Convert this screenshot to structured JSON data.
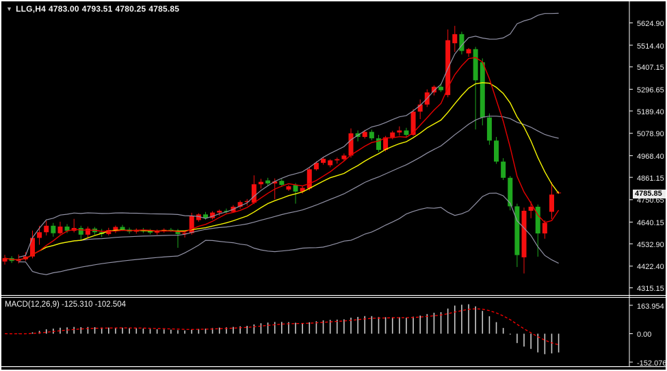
{
  "title_bar": {
    "icon": "▼",
    "symbol_period": "LLG,H4",
    "open": "4783.00",
    "high": "4793.51",
    "low": "4780.25",
    "close": "4785.85"
  },
  "chart_data": {
    "type": "candlestick",
    "symbol": "LLG",
    "timeframe": "H4",
    "title": "LLG,H4 4783.00 4793.51 4780.25 4785.85",
    "ylim": [
      4283,
      5731
    ],
    "grid": false,
    "legend_position": "none",
    "current_bar": {
      "open": "4783.00",
      "high": "4793.51",
      "low": "4780.25",
      "close": "4785.85"
    },
    "current_price": {
      "label": "4785.85",
      "price": 4785.85
    },
    "price_axis_ticks": [
      {
        "label": "5624.90",
        "price": 5624.9
      },
      {
        "label": "5514.40",
        "price": 5514.4
      },
      {
        "label": "5407.15",
        "price": 5407.15
      },
      {
        "label": "5296.65",
        "price": 5296.65
      },
      {
        "label": "5189.40",
        "price": 5189.4
      },
      {
        "label": "5078.90",
        "price": 5078.9
      },
      {
        "label": "4968.40",
        "price": 4968.4
      },
      {
        "label": "4861.15",
        "price": 4861.15
      },
      {
        "label": "4750.65",
        "price": 4750.65
      },
      {
        "label": "4640.15",
        "price": 4640.15
      },
      {
        "label": "4532.90",
        "price": 4532.9
      },
      {
        "label": "4422.40",
        "price": 4422.4
      },
      {
        "label": "4315.15",
        "price": 4315.15
      }
    ],
    "candles": [
      [
        4445,
        4478,
        4430,
        4462
      ],
      [
        4462,
        4472,
        4438,
        4448
      ],
      [
        4448,
        4480,
        4436,
        4456
      ],
      [
        4456,
        4492,
        4448,
        4470
      ],
      [
        4470,
        4598,
        4461,
        4562
      ],
      [
        4562,
        4622,
        4528,
        4590
      ],
      [
        4590,
        4646,
        4574,
        4622
      ],
      [
        4622,
        4636,
        4568,
        4585
      ],
      [
        4585,
        4642,
        4579,
        4618
      ],
      [
        4618,
        4630,
        4586,
        4597
      ],
      [
        4597,
        4656,
        4589,
        4611
      ],
      [
        4611,
        4622,
        4552,
        4578
      ],
      [
        4578,
        4618,
        4560,
        4608
      ],
      [
        4608,
        4616,
        4578,
        4590
      ],
      [
        4590,
        4606,
        4566,
        4581
      ],
      [
        4581,
        4612,
        4574,
        4601
      ],
      [
        4601,
        4623,
        4586,
        4616
      ],
      [
        4616,
        4626,
        4596,
        4603
      ],
      [
        4603,
        4613,
        4583,
        4593
      ],
      [
        4593,
        4609,
        4583,
        4601
      ],
      [
        4601,
        4611,
        4586,
        4595
      ],
      [
        4595,
        4606,
        4579,
        4588
      ],
      [
        4588,
        4603,
        4578,
        4596
      ],
      [
        4596,
        4609,
        4588,
        4602
      ],
      [
        4602,
        4611,
        4591,
        4597
      ],
      [
        4597,
        4606,
        4513,
        4581
      ],
      [
        4581,
        4597,
        4564,
        4586
      ],
      [
        4586,
        4686,
        4578,
        4671
      ],
      [
        4650,
        4684,
        4642,
        4678
      ],
      [
        4678,
        4690,
        4652,
        4660
      ],
      [
        4660,
        4694,
        4653,
        4687
      ],
      [
        4687,
        4702,
        4672,
        4696
      ],
      [
        4696,
        4707,
        4683,
        4691
      ],
      [
        4691,
        4724,
        4686,
        4716
      ],
      [
        4716,
        4747,
        4706,
        4739
      ],
      [
        4739,
        4754,
        4721,
        4744
      ],
      [
        4736,
        4871,
        4729,
        4827
      ],
      [
        4827,
        4854,
        4806,
        4839
      ],
      [
        4846,
        4859,
        4821,
        4831
      ],
      [
        4831,
        4856,
        4753,
        4841
      ],
      [
        4844,
        4853,
        4814,
        4824
      ],
      [
        4801,
        4823,
        4794,
        4817
      ],
      [
        4823,
        4833,
        4731,
        4791
      ],
      [
        4791,
        4819,
        4781,
        4809
      ],
      [
        4806,
        4909,
        4797,
        4901
      ],
      [
        4901,
        4941,
        4894,
        4933
      ],
      [
        4933,
        4963,
        4924,
        4953
      ],
      [
        4921,
        4951,
        4911,
        4945
      ],
      [
        4945,
        4959,
        4929,
        4951
      ],
      [
        4951,
        4979,
        4941,
        4969
      ],
      [
        4969,
        5103,
        4959,
        5079
      ],
      [
        5079,
        5093,
        5039,
        5061
      ],
      [
        5061,
        5096,
        5053,
        5086
      ],
      [
        5086,
        5097,
        5044,
        5054
      ],
      [
        5054,
        5071,
        4987,
        4997
      ],
      [
        4997,
        5066,
        4989,
        5059
      ],
      [
        5059,
        5091,
        5049,
        5083
      ],
      [
        5083,
        5113,
        5067,
        5093
      ],
      [
        5093,
        5106,
        5057,
        5071
      ],
      [
        5071,
        5199,
        5066,
        5186
      ],
      [
        5186,
        5246,
        5149,
        5221
      ],
      [
        5221,
        5296,
        5209,
        5281
      ],
      [
        5281,
        5316,
        5266,
        5309
      ],
      [
        5309,
        5326,
        5283,
        5292
      ],
      [
        5268,
        5592,
        5257,
        5539
      ],
      [
        5524,
        5610,
        5481,
        5569
      ],
      [
        5569,
        5581,
        5469,
        5486
      ],
      [
        5474,
        5501,
        5457,
        5495
      ],
      [
        5495,
        5506,
        5098,
        5341
      ],
      [
        5430,
        5449,
        5118,
        5157
      ],
      [
        5157,
        5177,
        5022,
        5043
      ],
      [
        5043,
        5061,
        4928,
        4939
      ],
      [
        4939,
        4956,
        4848,
        4859
      ],
      [
        4859,
        4868,
        4698,
        4718
      ],
      [
        4718,
        4731,
        4418,
        4477
      ],
      [
        4466,
        4712,
        4386,
        4696
      ],
      [
        4696,
        4742,
        4659,
        4716
      ],
      [
        4716,
        4727,
        4469,
        4584
      ],
      [
        4584,
        4649,
        4558,
        4636
      ],
      [
        4691,
        4837,
        4655,
        4776
      ],
      [
        4783.0,
        4793.51,
        4780.25,
        4785.85
      ]
    ],
    "overlays": {
      "bollinger": {
        "period": 26,
        "deviation": 2,
        "color": "#9393a7"
      },
      "ma_fast": {
        "period": 6,
        "color": "#e60000"
      },
      "ma_slow": {
        "period": 12,
        "color": "#f7f700"
      }
    },
    "macd": {
      "label": "MACD(12,26,9) -125.310 -102.504",
      "params": {
        "fast": 12,
        "slow": 26,
        "signal": 9
      },
      "value": -125.31,
      "signal_value": -102.504,
      "axis_labels": [
        "163.954",
        "0.00",
        "-152.076"
      ],
      "histogram_color": "#cccccc",
      "signal_color": "#ff0000"
    },
    "colors": {
      "bull": "#f50f0f",
      "bear": "#1fa81f",
      "background": "#000000",
      "frame": "#ffffff",
      "axis_text": "#ececec",
      "price_tag_bg": "#ececec"
    }
  }
}
